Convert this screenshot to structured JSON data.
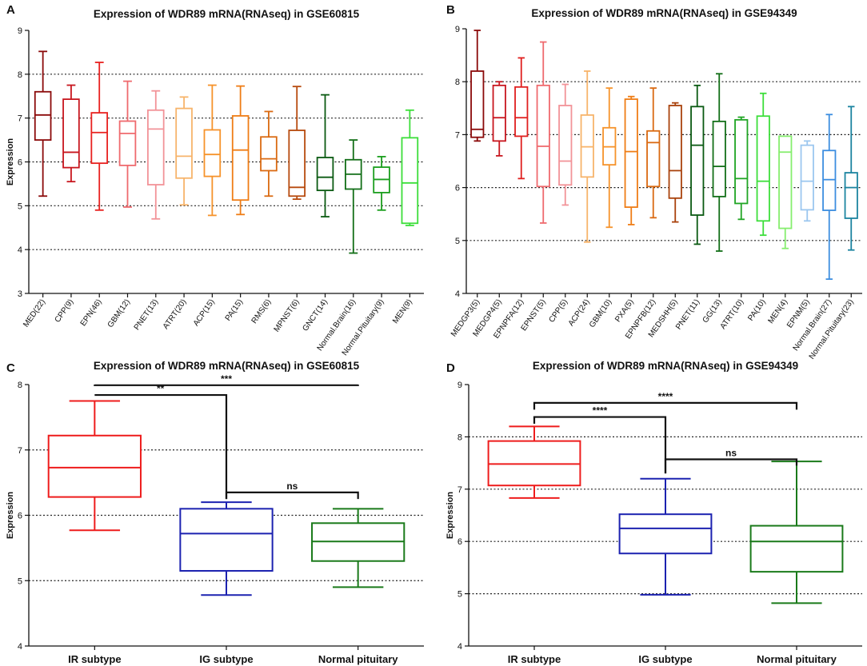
{
  "chart_data": [
    {
      "panel": "A",
      "type": "box",
      "title": "Expression of WDR89 mRNA(RNAseq) in GSE60815",
      "ylabel": "Expression",
      "ylim": [
        3,
        9
      ],
      "yticks": [
        3,
        4,
        5,
        6,
        7,
        8,
        9
      ],
      "gridlines": [
        4,
        5,
        6,
        7,
        8
      ],
      "xtick_rotation": "rotated",
      "groups": [
        {
          "label": "MED(22)",
          "color": "#8b0a0a",
          "min": 5.22,
          "q1": 6.5,
          "median": 7.07,
          "q3": 7.6,
          "max": 8.52
        },
        {
          "label": "CPP(9)",
          "color": "#c8161e",
          "min": 5.55,
          "q1": 5.87,
          "median": 6.22,
          "q3": 7.43,
          "max": 7.75
        },
        {
          "label": "EPN(46)",
          "color": "#e8211f",
          "min": 4.9,
          "q1": 5.97,
          "median": 6.67,
          "q3": 7.12,
          "max": 8.27
        },
        {
          "label": "GBM(12)",
          "color": "#ef6a6e",
          "min": 4.97,
          "q1": 5.92,
          "median": 6.65,
          "q3": 6.93,
          "max": 7.84
        },
        {
          "label": "PNET(13)",
          "color": "#f29398",
          "min": 4.7,
          "q1": 5.48,
          "median": 6.75,
          "q3": 7.18,
          "max": 7.62
        },
        {
          "label": "ATRT(20)",
          "color": "#f7b46b",
          "min": 5.02,
          "q1": 5.63,
          "median": 6.13,
          "q3": 7.22,
          "max": 7.48
        },
        {
          "label": "ACP(15)",
          "color": "#f6932b",
          "min": 4.78,
          "q1": 5.67,
          "median": 6.17,
          "q3": 6.73,
          "max": 7.75
        },
        {
          "label": "PA(15)",
          "color": "#ef7d16",
          "min": 4.8,
          "q1": 5.13,
          "median": 6.27,
          "q3": 7.05,
          "max": 7.73
        },
        {
          "label": "RMS(6)",
          "color": "#da6a12",
          "min": 5.22,
          "q1": 5.8,
          "median": 6.07,
          "q3": 6.57,
          "max": 7.15
        },
        {
          "label": "MPNST(6)",
          "color": "#b74a0e",
          "min": 5.15,
          "q1": 5.22,
          "median": 5.42,
          "q3": 6.72,
          "max": 7.72
        },
        {
          "label": "GNCT(14)",
          "color": "#0b5a12",
          "min": 4.75,
          "q1": 5.35,
          "median": 5.65,
          "q3": 6.1,
          "max": 7.53
        },
        {
          "label": "Normal.Brain(16)",
          "color": "#136f18",
          "min": 3.92,
          "q1": 5.38,
          "median": 5.72,
          "q3": 6.05,
          "max": 6.5
        },
        {
          "label": "Normal.Pituitary(9)",
          "color": "#1b9e1e",
          "min": 4.9,
          "q1": 5.3,
          "median": 5.6,
          "q3": 5.88,
          "max": 6.12
        },
        {
          "label": "MEN(9)",
          "color": "#3cde3a",
          "min": 4.55,
          "q1": 4.6,
          "median": 5.52,
          "q3": 6.55,
          "max": 7.18
        }
      ]
    },
    {
      "panel": "B",
      "type": "box",
      "title": "Expression of WDR89 mRNA(RNAseq) in GSE94349",
      "ylabel": "",
      "ylim": [
        4,
        9
      ],
      "yticks": [
        4,
        5,
        6,
        7,
        8,
        9
      ],
      "gridlines": [
        5,
        6,
        7,
        8
      ],
      "xtick_rotation": "rotated",
      "groups": [
        {
          "label": "MEDGP3(5)",
          "color": "#8b0a0a",
          "min": 6.88,
          "q1": 6.95,
          "median": 7.1,
          "q3": 8.2,
          "max": 8.97
        },
        {
          "label": "MEDGP4(5)",
          "color": "#c8161e",
          "min": 6.6,
          "q1": 6.88,
          "median": 7.32,
          "q3": 7.93,
          "max": 8.0
        },
        {
          "label": "EPNPFA(12)",
          "color": "#e0201f",
          "min": 6.17,
          "q1": 6.97,
          "median": 7.32,
          "q3": 7.9,
          "max": 8.45
        },
        {
          "label": "EPNST(5)",
          "color": "#ef6a6e",
          "min": 5.33,
          "q1": 6.02,
          "median": 6.78,
          "q3": 7.93,
          "max": 8.75
        },
        {
          "label": "CPP(5)",
          "color": "#f29398",
          "min": 5.67,
          "q1": 6.05,
          "median": 6.5,
          "q3": 7.55,
          "max": 7.95
        },
        {
          "label": "ACP(24)",
          "color": "#f7b46b",
          "min": 4.97,
          "q1": 6.2,
          "median": 6.77,
          "q3": 7.37,
          "max": 8.2
        },
        {
          "label": "GBM(10)",
          "color": "#f6932b",
          "min": 5.25,
          "q1": 6.43,
          "median": 6.77,
          "q3": 7.13,
          "max": 7.88
        },
        {
          "label": "PXA(5)",
          "color": "#ef7d16",
          "min": 5.3,
          "q1": 5.63,
          "median": 6.68,
          "q3": 7.67,
          "max": 7.72
        },
        {
          "label": "EPNPFB(12)",
          "color": "#da6a12",
          "min": 5.43,
          "q1": 6.02,
          "median": 6.85,
          "q3": 7.07,
          "max": 7.88
        },
        {
          "label": "MEDSHH(5)",
          "color": "#a9420c",
          "min": 5.35,
          "q1": 5.8,
          "median": 6.32,
          "q3": 7.55,
          "max": 7.6
        },
        {
          "label": "PNET(11)",
          "color": "#0b5a12",
          "min": 4.93,
          "q1": 5.48,
          "median": 6.8,
          "q3": 7.53,
          "max": 7.93
        },
        {
          "label": "GG(13)",
          "color": "#136f18",
          "min": 4.8,
          "q1": 5.83,
          "median": 6.4,
          "q3": 7.25,
          "max": 8.15
        },
        {
          "label": "ATRT(10)",
          "color": "#20a524",
          "min": 5.4,
          "q1": 5.7,
          "median": 6.17,
          "q3": 7.28,
          "max": 7.33
        },
        {
          "label": "PA(10)",
          "color": "#3cde3a",
          "min": 5.1,
          "q1": 5.37,
          "median": 6.12,
          "q3": 7.35,
          "max": 7.78
        },
        {
          "label": "MEN(4)",
          "color": "#86ee6e",
          "min": 4.85,
          "q1": 5.23,
          "median": 6.67,
          "q3": 6.97,
          "max": 6.97
        },
        {
          "label": "EPNM(5)",
          "color": "#9cc7ef",
          "min": 5.37,
          "q1": 5.58,
          "median": 6.12,
          "q3": 6.8,
          "max": 6.88
        },
        {
          "label": "Normal.Brain(27)",
          "color": "#3d8ee0",
          "min": 4.27,
          "q1": 5.57,
          "median": 6.15,
          "q3": 6.7,
          "max": 7.38
        },
        {
          "label": "Normal.Pituitary(23)",
          "color": "#1c84a0",
          "min": 4.82,
          "q1": 5.42,
          "median": 6.0,
          "q3": 6.28,
          "max": 7.53
        }
      ]
    },
    {
      "panel": "C",
      "type": "box",
      "title": "Expression of WDR89 mRNA(RNAseq) in GSE60815",
      "ylabel": "Expression",
      "ylim": [
        4,
        8
      ],
      "yticks": [
        4,
        5,
        6,
        7,
        8
      ],
      "gridlines": [
        5,
        6,
        7
      ],
      "xtick_rotation": "none",
      "groups": [
        {
          "label": "IR subtype",
          "color": "#ee1c1c",
          "min": 5.77,
          "q1": 6.28,
          "median": 6.73,
          "q3": 7.22,
          "max": 7.75
        },
        {
          "label": "IG subtype",
          "color": "#1c22b0",
          "min": 4.78,
          "q1": 5.15,
          "median": 5.72,
          "q3": 6.1,
          "max": 6.2
        },
        {
          "label": "Normal pituitary",
          "color": "#1a7a1a",
          "min": 4.9,
          "q1": 5.3,
          "median": 5.6,
          "q3": 5.88,
          "max": 6.1
        }
      ],
      "significance": [
        {
          "from": 0,
          "to": 2,
          "label": "***",
          "level": 7.99,
          "drop_to": [
            8.0,
            8.0
          ]
        },
        {
          "from": 0,
          "to": 1,
          "label": "**",
          "level": 7.84,
          "drop_to": [
            7.84,
            6.25
          ]
        },
        {
          "from": 1,
          "to": 2,
          "label": "ns",
          "level": 6.35,
          "drop_to": [
            6.25,
            6.25
          ]
        }
      ]
    },
    {
      "panel": "D",
      "type": "box",
      "title": "Expression of WDR89 mRNA(RNAseq) in GSE94349",
      "ylabel": "Expression",
      "ylim": [
        4,
        9
      ],
      "yticks": [
        4,
        5,
        6,
        7,
        8,
        9
      ],
      "gridlines": [
        5,
        6,
        7,
        8
      ],
      "xtick_rotation": "none",
      "groups": [
        {
          "label": "IR subtype",
          "color": "#ee1c1c",
          "min": 6.83,
          "q1": 7.07,
          "median": 7.48,
          "q3": 7.92,
          "max": 8.2
        },
        {
          "label": "IG subtype",
          "color": "#1c22b0",
          "min": 4.98,
          "q1": 5.77,
          "median": 6.25,
          "q3": 6.52,
          "max": 7.2
        },
        {
          "label": "Normal pituitary",
          "color": "#1a7a1a",
          "min": 4.82,
          "q1": 5.42,
          "median": 6.0,
          "q3": 6.3,
          "max": 7.53
        }
      ],
      "significance": [
        {
          "from": 0,
          "to": 2,
          "label": "****",
          "level": 8.65,
          "drop_to": [
            8.52,
            8.52
          ]
        },
        {
          "from": 0,
          "to": 1,
          "label": "****",
          "level": 8.38,
          "drop_to": [
            8.25,
            7.3
          ]
        },
        {
          "from": 1,
          "to": 2,
          "label": "ns",
          "level": 7.57,
          "drop_to": [
            7.3,
            7.45
          ]
        }
      ]
    }
  ]
}
